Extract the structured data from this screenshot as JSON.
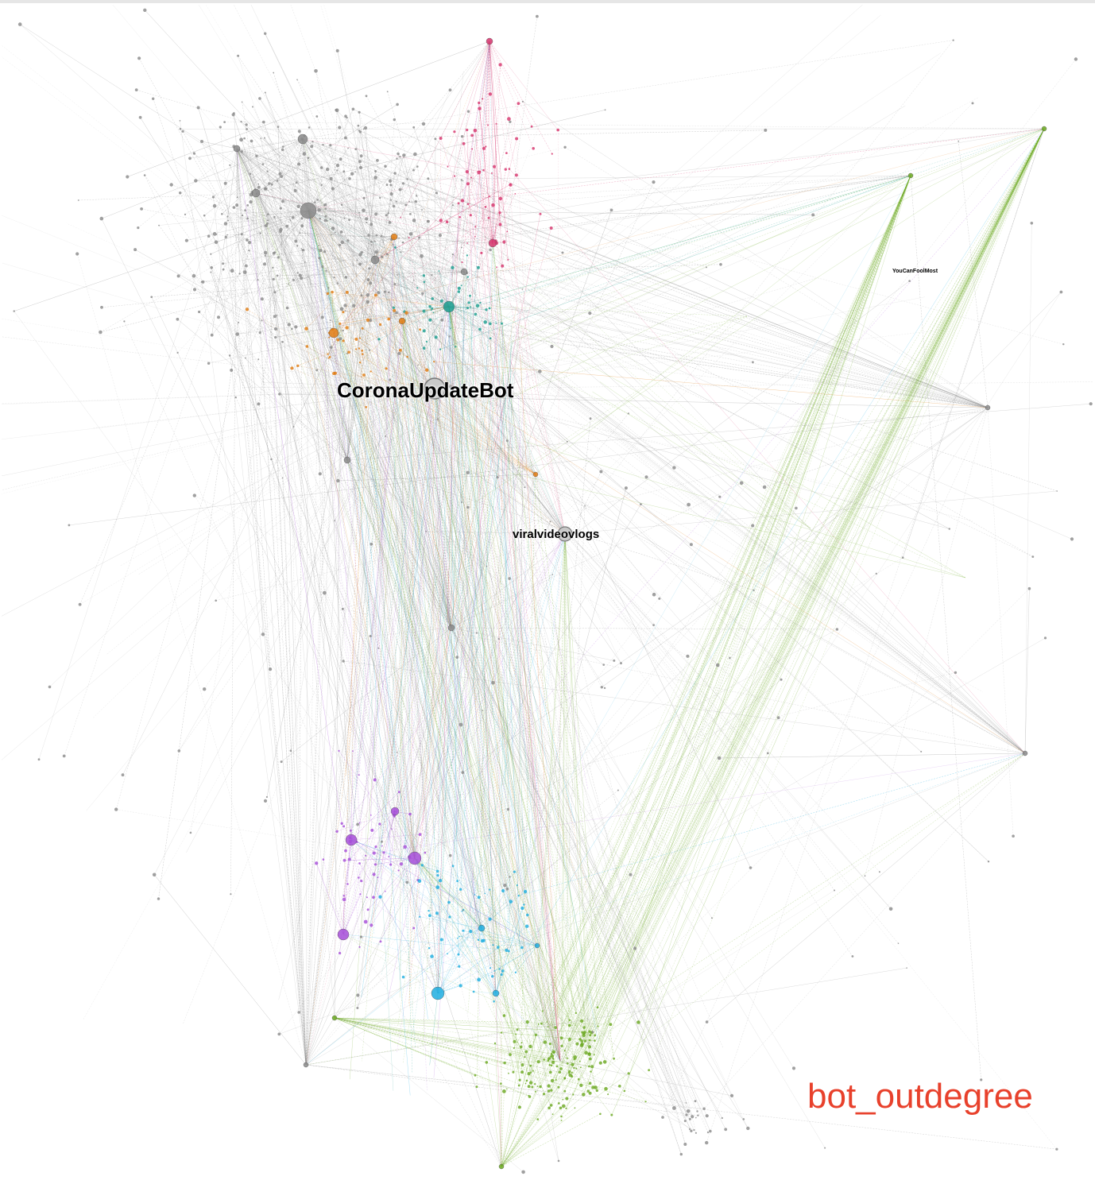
{
  "figure": {
    "metric_title": "bot_outdegree",
    "node_labels": {
      "primary": "CoronaUpdateBot",
      "secondary": "viralvideovlogs",
      "tertiary": "YouCanFoolMost"
    }
  },
  "colors": {
    "title": "#e8412c",
    "gray_community": "#8a8a8a",
    "pink_community": "#d6336c",
    "teal_community": "#1a9e8f",
    "orange_community": "#e07b10",
    "purple_community": "#a64dd8",
    "blue_community": "#1eaee0",
    "green_community": "#6aa81f",
    "hub_fill": "#c8c8c8"
  }
}
